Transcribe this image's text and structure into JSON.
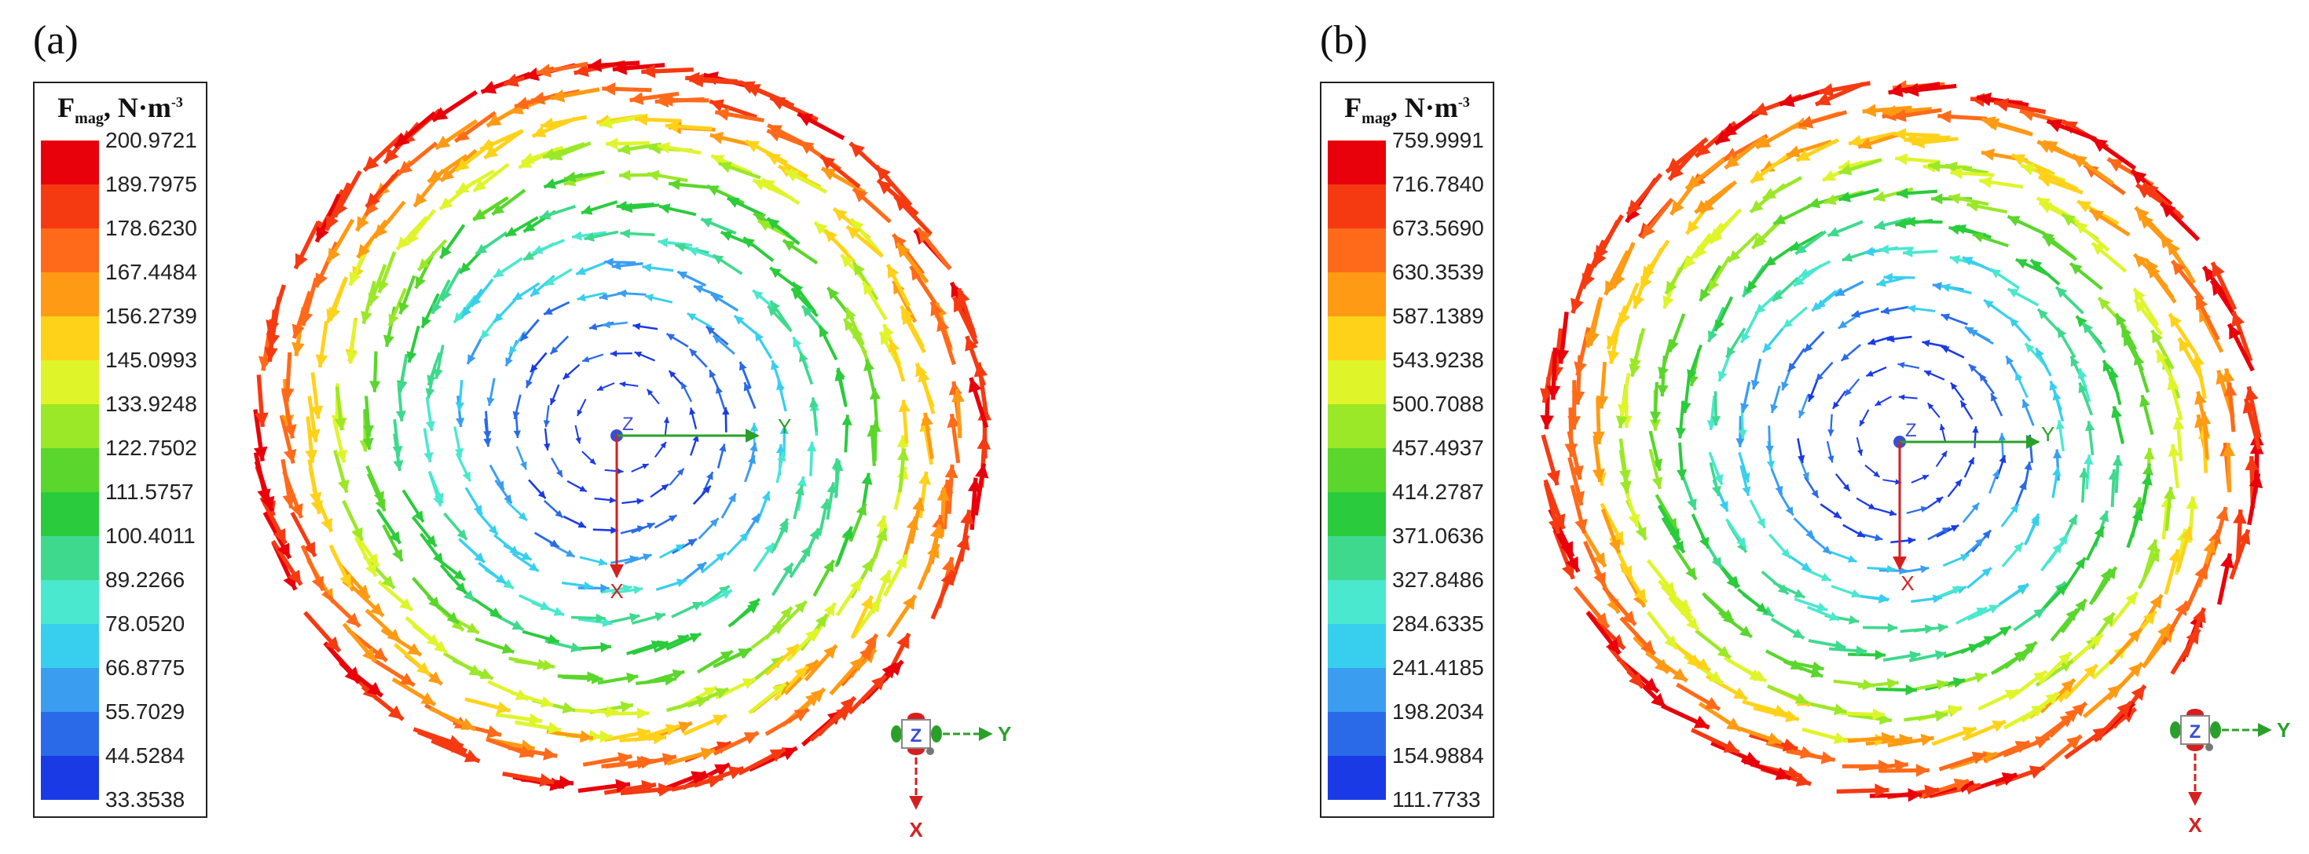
{
  "panels": [
    {
      "label": "(a)",
      "legend": {
        "title_main": "F",
        "title_sub": "mag",
        "title_rest": ", N·m",
        "title_sup": "-3",
        "values": [
          "200.9721",
          "189.7975",
          "178.6230",
          "167.4484",
          "156.2739",
          "145.0993",
          "133.9248",
          "122.7502",
          "111.5757",
          "100.4011",
          "89.2266",
          "78.0520",
          "66.8775",
          "55.7029",
          "44.5284",
          "33.3538"
        ]
      },
      "axes": {
        "y": "Y",
        "x": "X",
        "z": "Z"
      },
      "triad": {
        "z": "Z",
        "y": "Y",
        "x": "X"
      }
    },
    {
      "label": "(b)",
      "legend": {
        "title_main": "F",
        "title_sub": "mag",
        "title_rest": ", N·m",
        "title_sup": "-3",
        "values": [
          "759.9991",
          "716.7840",
          "673.5690",
          "630.3539",
          "587.1389",
          "543.9238",
          "500.7088",
          "457.4937",
          "414.2787",
          "371.0636",
          "327.8486",
          "284.6335",
          "241.4185",
          "198.2034",
          "154.9884",
          "111.7733"
        ]
      },
      "axes": {
        "y": "Y",
        "x": "X",
        "z": "Z"
      },
      "triad": {
        "z": "Z",
        "y": "Y",
        "x": "X"
      }
    }
  ],
  "colors": [
    "#e8000b",
    "#f53a12",
    "#ff6a1a",
    "#ff9a14",
    "#ffd21a",
    "#dff52a",
    "#9be828",
    "#5ad62c",
    "#2acb3c",
    "#3fd98e",
    "#49e8cf",
    "#38cfee",
    "#3a9df0",
    "#2a6ae8",
    "#1a3ae6",
    "#1212ee"
  ],
  "axis_colors": {
    "x": "#d62020",
    "y": "#2aa02a",
    "z": "#3a4fd0"
  }
}
